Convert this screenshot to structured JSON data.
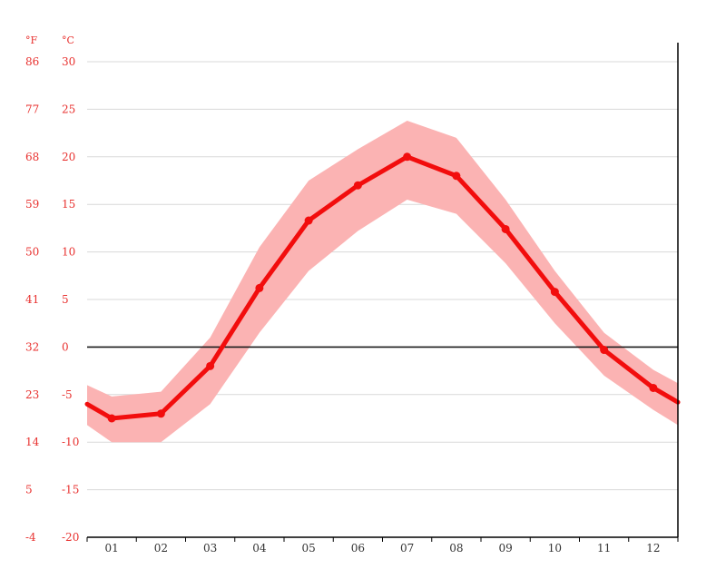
{
  "chart_data": {
    "type": "line",
    "title": "",
    "xlabel": "",
    "ylabel": "",
    "units": {
      "fahrenheit": "°F",
      "celsius": "°C"
    },
    "categories": [
      "01",
      "02",
      "03",
      "04",
      "05",
      "06",
      "07",
      "08",
      "09",
      "10",
      "11",
      "12"
    ],
    "ylim": [
      -20,
      30
    ],
    "y_ticks_celsius": [
      30,
      25,
      20,
      15,
      10,
      5,
      0,
      -5,
      -10,
      -15,
      -20
    ],
    "y_ticks_fahrenheit": [
      86,
      77,
      68,
      59,
      50,
      41,
      32,
      23,
      14,
      5,
      -4
    ],
    "zero_line": true,
    "grid": true,
    "series": [
      {
        "values": [
          -7.5,
          -7.0,
          -2.0,
          6.2,
          13.3,
          17.0,
          20.0,
          18.0,
          12.4,
          5.8,
          -0.3,
          -4.3
        ]
      }
    ],
    "line_edge_values": {
      "start": -6.0,
      "end": -5.8
    },
    "band": {
      "months": [
        "edge",
        "01",
        "02",
        "03",
        "04",
        "05",
        "06",
        "07",
        "08",
        "09",
        "10",
        "11",
        "12",
        "edge"
      ],
      "upper": [
        -4.0,
        -5.2,
        -4.7,
        1.0,
        10.5,
        17.5,
        20.8,
        23.8,
        22.0,
        15.5,
        8.0,
        1.5,
        -2.4,
        -3.8
      ],
      "lower": [
        -8.2,
        -10.0,
        -10.0,
        -6.0,
        1.5,
        8.0,
        12.2,
        15.5,
        14.0,
        8.8,
        2.5,
        -3.0,
        -6.6,
        -8.2
      ]
    },
    "colors": {
      "line": "#f20d0d",
      "band": "#fbb3b3",
      "axis_text": "#e8312f",
      "grid": "#d9d9d9",
      "zero": "#1a1a1a"
    }
  }
}
